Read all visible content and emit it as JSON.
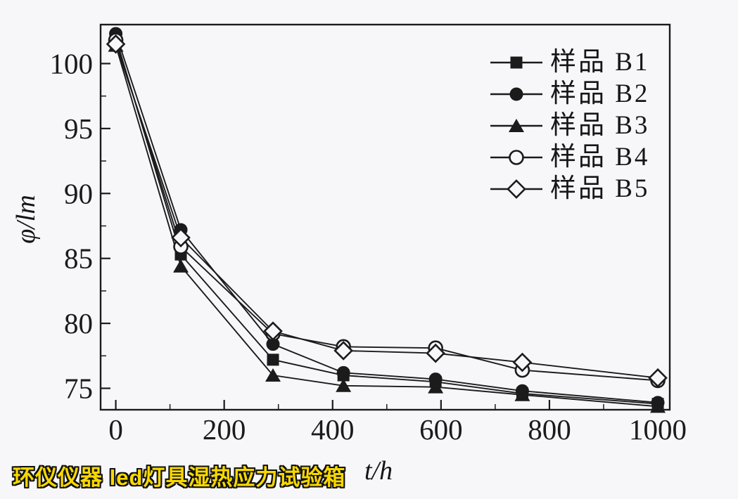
{
  "page_background": "#f7f6f9",
  "ink_color": "#1b1b1b",
  "watermark": {
    "text": "环仪仪器 led灯具湿热应力试验箱",
    "color": "#f8d800"
  },
  "chart_data": {
    "type": "line",
    "title": "",
    "xlabel": "t/h",
    "ylabel": "φ/lm",
    "grid": false,
    "legend_position": "top-right",
    "xlim": [
      -28,
      1022
    ],
    "ylim": [
      73.35,
      103
    ],
    "x_ticks": [
      0,
      200,
      400,
      600,
      800,
      1000
    ],
    "x_minor_ticks": [
      100,
      300,
      500,
      700,
      900
    ],
    "y_ticks": [
      75,
      80,
      85,
      90,
      95,
      100
    ],
    "y_minor_ticks": [
      77.5,
      82.5,
      87.5,
      92.5,
      97.5
    ],
    "x": [
      0,
      120,
      290,
      420,
      590,
      750,
      1000
    ],
    "series": [
      {
        "id": "b1",
        "name": "样品 B1",
        "marker": "square-filled",
        "values": [
          102.0,
          85.3,
          77.2,
          76.0,
          75.5,
          74.6,
          73.8
        ]
      },
      {
        "id": "b2",
        "name": "样品 B2",
        "marker": "circle-filled",
        "values": [
          102.3,
          87.2,
          78.4,
          76.2,
          75.7,
          74.8,
          73.9
        ]
      },
      {
        "id": "b3",
        "name": "样品 B3",
        "marker": "triangle-filled",
        "values": [
          101.4,
          84.4,
          76.0,
          75.2,
          75.1,
          74.5,
          73.6
        ]
      },
      {
        "id": "b4",
        "name": "样品 B4",
        "marker": "circle-open",
        "values": [
          101.8,
          85.9,
          79.2,
          78.2,
          78.1,
          76.4,
          75.6
        ]
      },
      {
        "id": "b5",
        "name": "样品 B5",
        "marker": "diamond-open",
        "values": [
          101.5,
          86.6,
          79.4,
          77.9,
          77.7,
          77.0,
          75.8
        ]
      }
    ]
  }
}
